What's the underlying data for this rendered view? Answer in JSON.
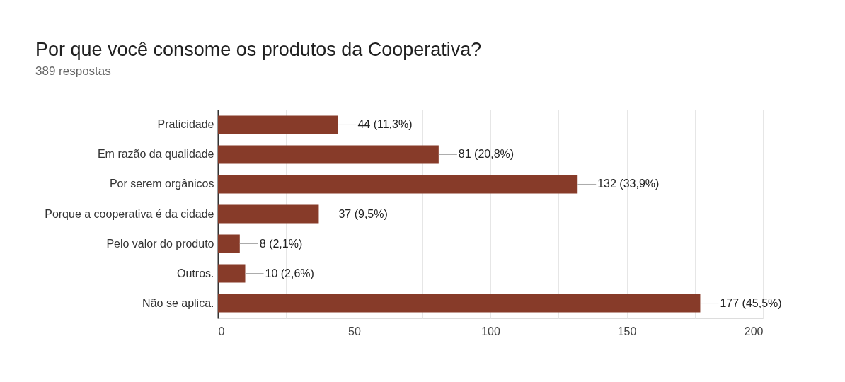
{
  "chart_data": {
    "type": "bar",
    "orientation": "horizontal",
    "title": "Por que você consome os produtos da Cooperativa?",
    "subtitle": "389 respostas",
    "categories": [
      "Praticidade",
      "Em razão da qualidade",
      "Por serem orgânicos",
      "Porque a cooperativa é da cidade",
      "Pelo valor do produto",
      "Outros.",
      "Não se aplica."
    ],
    "values": [
      44,
      81,
      132,
      37,
      8,
      10,
      177
    ],
    "value_labels": [
      "44 (11,3%)",
      "81 (20,8%)",
      "132 (33,9%)",
      "37 (9,5%)",
      "8 (2,1%)",
      "10 (2,6%)",
      "177 (45,5%)"
    ],
    "color": "#873b29",
    "xlim": [
      0,
      200
    ],
    "xticks": [
      0,
      {
        "value": 25,
        "label": null
      },
      50,
      {
        "value": 75,
        "label": null
      },
      100,
      {
        "value": 125,
        "label": null
      },
      150,
      {
        "value": 175,
        "label": null
      },
      200
    ],
    "grid": "x"
  }
}
